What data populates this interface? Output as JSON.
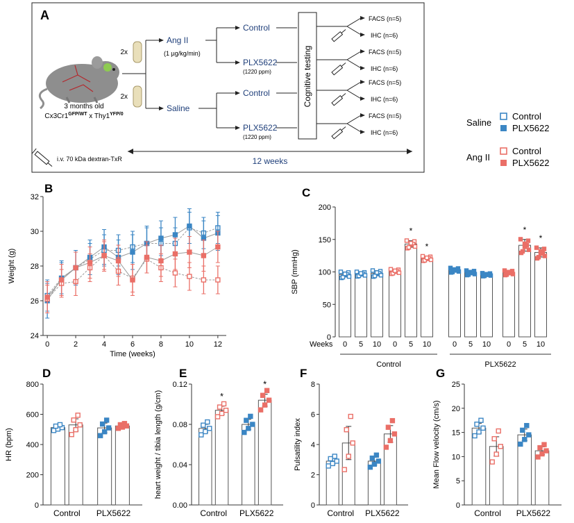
{
  "panel_a": {
    "label": "A",
    "mouse_age": "3 months old",
    "genotype": {
      "gene1": "Cx3Cr1",
      "sup1": "GFP/WT",
      "x": " x ",
      "gene2": "Thy1",
      "sup2": "YFP/0"
    },
    "pump_count": "2x",
    "groups": [
      {
        "treatment": "Ang II",
        "dose": "(1 µg/kg/min)",
        "arms": [
          {
            "name": "Control",
            "dose": ""
          },
          {
            "name": "PLX5622",
            "dose": "(1220 ppm)"
          }
        ]
      },
      {
        "treatment": "Saline",
        "dose": "",
        "arms": [
          {
            "name": "Control",
            "dose": ""
          },
          {
            "name": "PLX5622",
            "dose": "(1220 ppm)"
          }
        ]
      }
    ],
    "cognitive": "Cognitive testing",
    "facs": "FACS (n=5)",
    "ihc": "IHC (n=6)",
    "injection": "i.v. 70 kDa dextran-TxR",
    "duration": "12 weeks"
  },
  "legend": {
    "groups": [
      {
        "name": "Saline",
        "items": [
          {
            "label": "Control",
            "marker": "open",
            "color": "#3b86c4"
          },
          {
            "label": "PLX5622",
            "marker": "filled",
            "color": "#3b86c4"
          }
        ]
      },
      {
        "name": "Ang II",
        "items": [
          {
            "label": "Control",
            "marker": "open",
            "color": "#ea6f67"
          },
          {
            "label": "PLX5622",
            "marker": "filled",
            "color": "#ea6f67"
          }
        ]
      }
    ]
  },
  "colors": {
    "blue": "#3b86c4",
    "red": "#ea6f67",
    "axis": "#333333"
  },
  "chart_data": [
    {
      "id": "B",
      "panel_label": "B",
      "type": "line",
      "xlabel": "Time (weeks)",
      "ylabel": "Weight (g)",
      "xlim": [
        -0.3,
        12.3
      ],
      "ylim": [
        24,
        32
      ],
      "xticks": [
        0,
        2,
        4,
        6,
        8,
        10,
        12
      ],
      "yticks": [
        24,
        26,
        28,
        30,
        32
      ],
      "x": [
        0,
        1,
        2,
        3,
        4,
        5,
        6,
        7,
        8,
        9,
        10,
        11,
        12
      ],
      "series": [
        {
          "name": "Saline Control",
          "color": "#3b86c4",
          "filled": false,
          "values": [
            26.3,
            27.3,
            27.9,
            28.4,
            28.9,
            28.9,
            29.1,
            29.3,
            29.3,
            29.3,
            30.2,
            29.9,
            30.2
          ],
          "err": 0.9
        },
        {
          "name": "Saline PLX5622",
          "color": "#3b86c4",
          "filled": true,
          "values": [
            26.0,
            27.3,
            27.9,
            28.5,
            29.1,
            28.5,
            28.8,
            29.3,
            29.6,
            29.8,
            30.3,
            29.6,
            29.9
          ],
          "err": 1.0
        },
        {
          "name": "Ang II Control",
          "color": "#ea6f67",
          "filled": false,
          "values": [
            26.1,
            27.0,
            27.1,
            27.9,
            28.6,
            27.7,
            27.3,
            28.4,
            27.9,
            27.6,
            27.4,
            27.2,
            27.2
          ],
          "err": 0.8
        },
        {
          "name": "Ang II PLX5622",
          "color": "#ea6f67",
          "filled": true,
          "values": [
            26.2,
            27.2,
            27.9,
            28.2,
            28.6,
            28.3,
            27.2,
            28.5,
            28.3,
            28.7,
            28.8,
            28.6,
            29.1
          ],
          "err": 0.9
        }
      ]
    },
    {
      "id": "C",
      "panel_label": "C",
      "type": "bar",
      "ylabel": "SBP (mmHg)",
      "ylim": [
        0,
        200
      ],
      "yticks": [
        0,
        50,
        100,
        150,
        200
      ],
      "weeks_label": "Weeks",
      "week_ticks": [
        "0",
        "5",
        "10"
      ],
      "group_labels": [
        "Control",
        "PLX5622"
      ],
      "series": [
        {
          "name": "Saline Control",
          "color": "#3b86c4",
          "filled": false,
          "values": [
            96,
            97,
            98
          ],
          "err": [
            4,
            3,
            4
          ],
          "sig": [
            "",
            "",
            ""
          ]
        },
        {
          "name": "Ang II Control",
          "color": "#ea6f67",
          "filled": false,
          "values": [
            101,
            143,
            121
          ],
          "err": [
            3,
            5,
            3
          ],
          "sig": [
            "",
            "*",
            "*"
          ]
        },
        {
          "name": "Saline PLX5622",
          "color": "#3b86c4",
          "filled": true,
          "values": [
            103,
            99,
            96
          ],
          "err": [
            3,
            3,
            2
          ],
          "sig": [
            "",
            "",
            ""
          ]
        },
        {
          "name": "Ang II PLX5622",
          "color": "#ea6f67",
          "filled": true,
          "values": [
            99,
            141,
            130
          ],
          "err": [
            3,
            9,
            7
          ],
          "sig": [
            "",
            "*",
            "*"
          ]
        }
      ]
    },
    {
      "id": "D",
      "panel_label": "D",
      "type": "bar",
      "ylabel": "HR (bpm)",
      "ylim": [
        0,
        800
      ],
      "yticks": [
        0,
        200,
        400,
        600,
        800
      ],
      "categories": [
        "Control",
        "PLX5622"
      ],
      "series": [
        {
          "name": "Saline Control",
          "color": "#3b86c4",
          "filled": false,
          "value": 512,
          "err": 12,
          "sig": ""
        },
        {
          "name": "Ang II Control",
          "color": "#ea6f67",
          "filled": false,
          "value": 530,
          "err": 40,
          "sig": ""
        },
        {
          "name": "Saline PLX5622",
          "color": "#3b86c4",
          "filled": true,
          "value": 510,
          "err": 32,
          "sig": ""
        },
        {
          "name": "Ang II PLX5622",
          "color": "#ea6f67",
          "filled": true,
          "value": 523,
          "err": 10,
          "sig": ""
        }
      ]
    },
    {
      "id": "E",
      "panel_label": "E",
      "type": "bar",
      "ylabel": "heart weight / tibia length (g/cm)",
      "ylim": [
        0,
        0.12
      ],
      "yticks": [
        0,
        0.04,
        0.08,
        0.12
      ],
      "ytick_labels": [
        "0.00",
        "0.04",
        "0.08",
        "0.12"
      ],
      "categories": [
        "Control",
        "PLX5622"
      ],
      "series": [
        {
          "name": "Saline Control",
          "color": "#3b86c4",
          "filled": false,
          "value": 0.076,
          "err": 0.004,
          "sig": ""
        },
        {
          "name": "Ang II Control",
          "color": "#ea6f67",
          "filled": false,
          "value": 0.094,
          "err": 0.004,
          "sig": "*"
        },
        {
          "name": "Saline PLX5622",
          "color": "#3b86c4",
          "filled": true,
          "value": 0.08,
          "err": 0.005,
          "sig": ""
        },
        {
          "name": "Ang II PLX5622",
          "color": "#ea6f67",
          "filled": true,
          "value": 0.104,
          "err": 0.006,
          "sig": "*"
        }
      ]
    },
    {
      "id": "F",
      "panel_label": "F",
      "type": "bar",
      "ylabel": "Pulsatility index",
      "ylim": [
        0,
        8
      ],
      "yticks": [
        0,
        2,
        4,
        6,
        8
      ],
      "categories": [
        "Control",
        "PLX5622"
      ],
      "series": [
        {
          "name": "Saline Control",
          "color": "#3b86c4",
          "filled": false,
          "value": 2.9,
          "err": 0.2,
          "sig": ""
        },
        {
          "name": "Ang II Control",
          "color": "#ea6f67",
          "filled": false,
          "value": 4.1,
          "err": 1.1,
          "sig": ""
        },
        {
          "name": "Saline PLX5622",
          "color": "#3b86c4",
          "filled": true,
          "value": 2.9,
          "err": 0.25,
          "sig": ""
        },
        {
          "name": "Ang II PLX5622",
          "color": "#ea6f67",
          "filled": true,
          "value": 4.7,
          "err": 0.55,
          "sig": ""
        }
      ]
    },
    {
      "id": "G",
      "panel_label": "G",
      "type": "bar",
      "ylabel": "Mean Flow velocity (cm/s)",
      "ylim": [
        0,
        25
      ],
      "yticks": [
        0,
        5,
        10,
        15,
        20,
        25
      ],
      "categories": [
        "Control",
        "PLX5622"
      ],
      "series": [
        {
          "name": "Saline Control",
          "color": "#3b86c4",
          "filled": false,
          "value": 15.9,
          "err": 1.0,
          "sig": ""
        },
        {
          "name": "Ang II Control",
          "color": "#ea6f67",
          "filled": false,
          "value": 12.1,
          "err": 2.0,
          "sig": ""
        },
        {
          "name": "Saline PLX5622",
          "color": "#3b86c4",
          "filled": true,
          "value": 14.5,
          "err": 1.2,
          "sig": ""
        },
        {
          "name": "Ang II PLX5622",
          "color": "#ea6f67",
          "filled": true,
          "value": 11.2,
          "err": 0.8,
          "sig": ""
        }
      ]
    }
  ]
}
